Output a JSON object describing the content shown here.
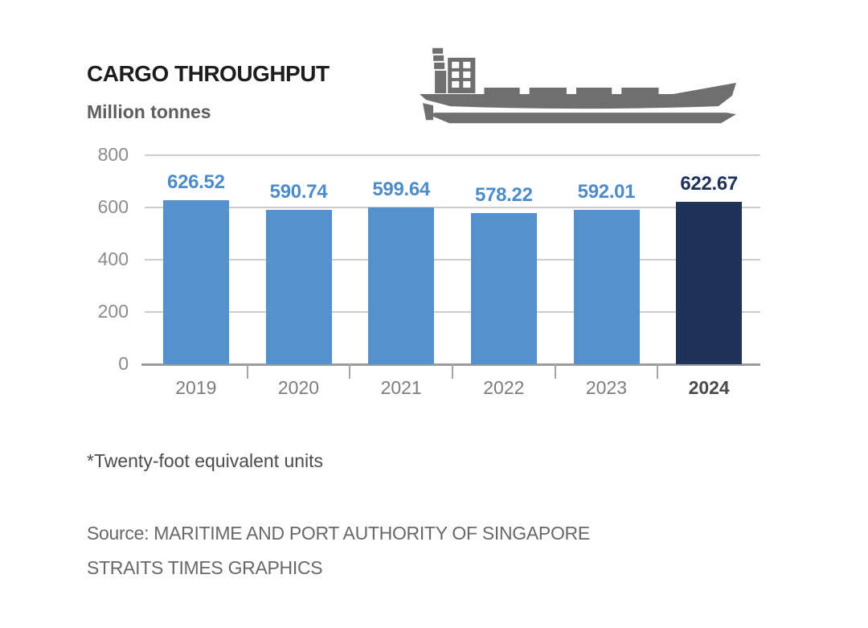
{
  "header": {
    "title": "CARGO THROUGHPUT",
    "subtitle": "Million tonnes"
  },
  "icons": {
    "ship": "cargo-ship-icon",
    "ship_color": "#6F6F6F"
  },
  "chart_data": {
    "type": "bar",
    "title": "CARGO THROUGHPUT",
    "ylabel": "Million tonnes",
    "categories": [
      "2019",
      "2020",
      "2021",
      "2022",
      "2023",
      "2024"
    ],
    "values": [
      626.52,
      590.74,
      599.64,
      578.22,
      592.01,
      622.67
    ],
    "value_labels": [
      "626.52",
      "590.74",
      "599.64",
      "578.22",
      "592.01",
      "622.67"
    ],
    "ylim": [
      0,
      800
    ],
    "yticks": [
      0,
      200,
      400,
      600,
      800
    ],
    "grid": true,
    "legend": "none",
    "highlight_index": 5,
    "bar_color": "#5592CD",
    "highlight_color": "#1F3258",
    "label_color": "#4E8CC9",
    "highlight_label_color": "#1F3258"
  },
  "footer": {
    "footnote": "*Twenty-foot equivalent units",
    "source_line1": "Source: MARITIME AND PORT AUTHORITY OF SINGAPORE",
    "source_line2": "STRAITS TIMES GRAPHICS"
  }
}
